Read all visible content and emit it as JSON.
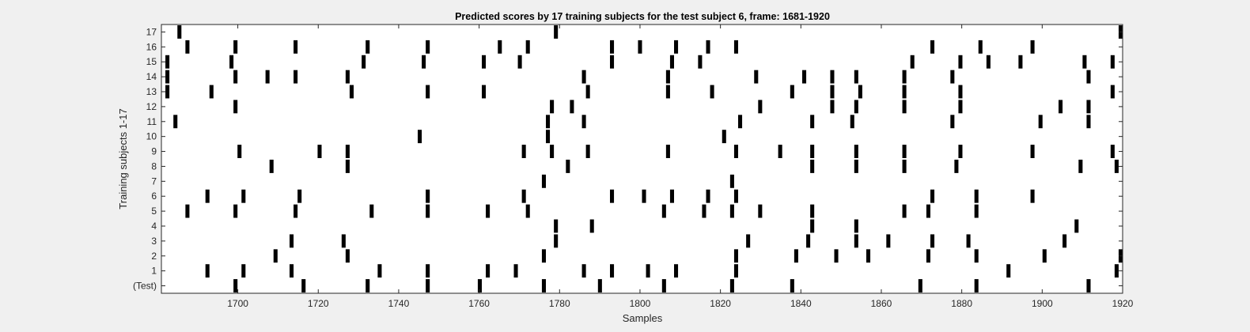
{
  "chart_data": {
    "type": "heatmap",
    "title": "Predicted scores by 17 training subjects for the test subject 6, frame: 1681-1920",
    "xlabel": "Samples",
    "ylabel": "Training subjects 1-17",
    "xlim": [
      1681,
      1920
    ],
    "xticks": [
      1700,
      1720,
      1740,
      1760,
      1780,
      1800,
      1820,
      1840,
      1860,
      1880,
      1900,
      1920
    ],
    "row_labels": [
      "(Test)",
      "1",
      "2",
      "3",
      "4",
      "5",
      "6",
      "7",
      "8",
      "9",
      "10",
      "11",
      "12",
      "13",
      "14",
      "15",
      "16",
      "17"
    ],
    "grid": false,
    "colors": {
      "mark": "#000000",
      "background": "#ffffff"
    },
    "rows": [
      {
        "label": "(Test)",
        "x": [
          1699,
          1716,
          1732,
          1747,
          1760,
          1776,
          1790,
          1806,
          1823,
          1838,
          1870,
          1884,
          1912
        ]
      },
      {
        "label": "1",
        "x": [
          1692,
          1701,
          1713,
          1735,
          1747,
          1762,
          1769,
          1786,
          1793,
          1802,
          1809,
          1824,
          1892,
          1919
        ]
      },
      {
        "label": "2",
        "x": [
          1709,
          1727,
          1776,
          1824,
          1839,
          1849,
          1857,
          1872,
          1884,
          1901,
          1920
        ]
      },
      {
        "label": "3",
        "x": [
          1713,
          1726,
          1779,
          1827,
          1842,
          1854,
          1862,
          1873,
          1882,
          1906
        ]
      },
      {
        "label": "4",
        "x": [
          1779,
          1788,
          1843,
          1854,
          1909
        ]
      },
      {
        "label": "5",
        "x": [
          1687,
          1699,
          1714,
          1733,
          1747,
          1762,
          1772,
          1806,
          1816,
          1823,
          1830,
          1843,
          1866,
          1872,
          1884
        ]
      },
      {
        "label": "6",
        "x": [
          1692,
          1701,
          1715,
          1747,
          1771,
          1793,
          1801,
          1808,
          1817,
          1824,
          1873,
          1884,
          1898
        ]
      },
      {
        "label": "7",
        "x": [
          1776,
          1823
        ]
      },
      {
        "label": "8",
        "x": [
          1708,
          1727,
          1782,
          1843,
          1854,
          1866,
          1879,
          1910,
          1919
        ]
      },
      {
        "label": "9",
        "x": [
          1700,
          1720,
          1727,
          1771,
          1778,
          1787,
          1807,
          1824,
          1835,
          1843,
          1854,
          1866,
          1880,
          1898,
          1918
        ]
      },
      {
        "label": "10",
        "x": [
          1745,
          1777,
          1821
        ]
      },
      {
        "label": "11",
        "x": [
          1684,
          1777,
          1786,
          1825,
          1843,
          1853,
          1878,
          1900,
          1912
        ]
      },
      {
        "label": "12",
        "x": [
          1699,
          1778,
          1783,
          1830,
          1848,
          1854,
          1866,
          1880,
          1905,
          1912
        ]
      },
      {
        "label": "13",
        "x": [
          1682,
          1693,
          1728,
          1747,
          1761,
          1787,
          1807,
          1818,
          1838,
          1848,
          1855,
          1866,
          1880,
          1918
        ]
      },
      {
        "label": "14",
        "x": [
          1682,
          1699,
          1707,
          1714,
          1727,
          1786,
          1807,
          1829,
          1841,
          1848,
          1854,
          1866,
          1878,
          1912
        ]
      },
      {
        "label": "15",
        "x": [
          1682,
          1698,
          1731,
          1746,
          1761,
          1770,
          1793,
          1808,
          1815,
          1868,
          1880,
          1887,
          1895,
          1911,
          1918
        ]
      },
      {
        "label": "16",
        "x": [
          1687,
          1699,
          1714,
          1732,
          1747,
          1765,
          1772,
          1793,
          1800,
          1809,
          1817,
          1824,
          1873,
          1885,
          1898
        ]
      },
      {
        "label": "17",
        "x": [
          1685,
          1779,
          1920
        ]
      }
    ]
  }
}
